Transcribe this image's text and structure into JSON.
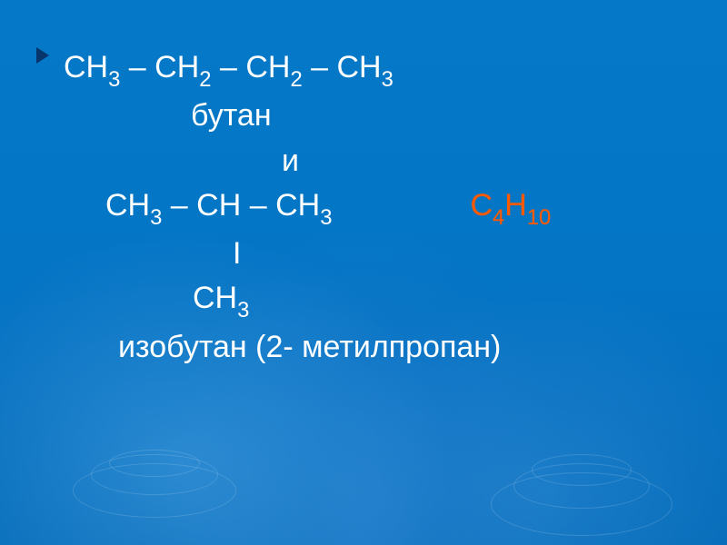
{
  "slide": {
    "background_color": "#0477c7",
    "text_color": "#ffffff",
    "accent_color": "#ff5a00",
    "bullet_color": "#07285a",
    "font_size_main": 34,
    "chemistry": {
      "line1_formula": "СН₃ – СН₂ – СН₂ – СН₃",
      "line1_parts": {
        "p1": "СН",
        "s1": "3",
        "p2": " – СН",
        "s2": "2",
        "p3": " – СН",
        "s3": "2",
        "p4": " – СН",
        "s4": "3"
      },
      "name1": "бутан",
      "conjunction": "и",
      "line2_parts": {
        "p1": "СН",
        "s1": "3",
        "p2": " – СН – СН",
        "s2": "3"
      },
      "molecular_formula": {
        "p1": "С",
        "s1": "4",
        "p2": "Н",
        "s2": "10"
      },
      "bond_marker": "I",
      "substituent": {
        "p1": "СН",
        "s1": "3"
      },
      "name2": "изобутан (2- метилпропан)"
    }
  }
}
